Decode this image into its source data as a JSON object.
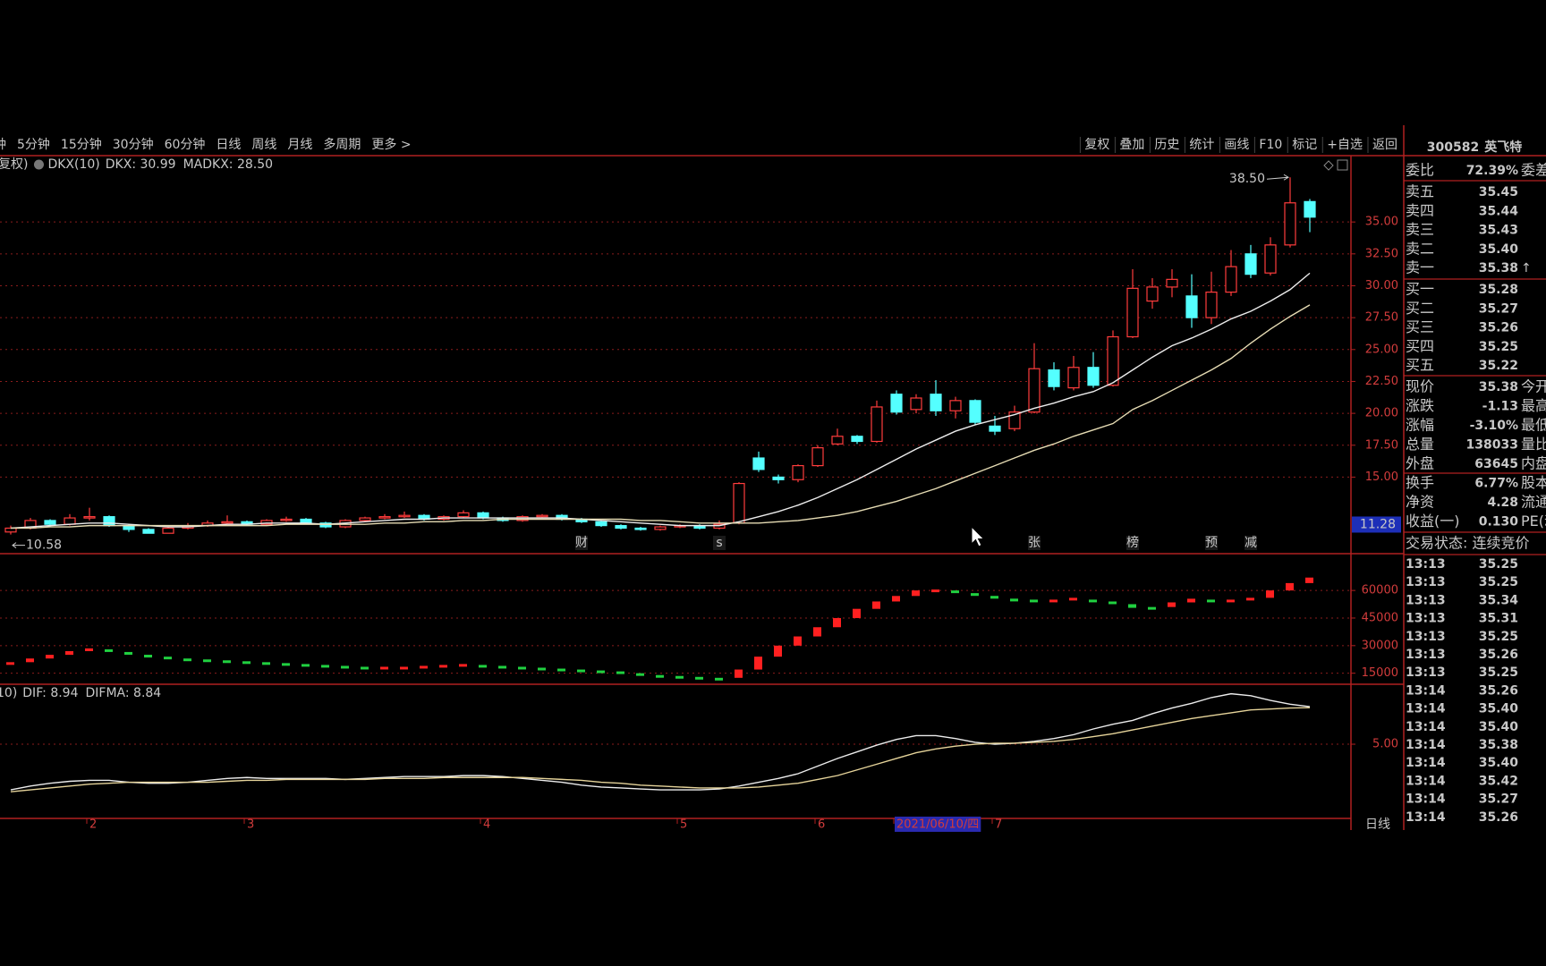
{
  "toolbar": {
    "periods": [
      "钟",
      "5分钟",
      "15分钟",
      "30分钟",
      "60分钟",
      "日线",
      "周线",
      "月线",
      "多周期",
      "更多 >"
    ],
    "active_period": 5,
    "tools": [
      "复权",
      "叠加",
      "历史",
      "统计",
      "画线",
      "F10",
      "标记",
      "+自选",
      "返回"
    ]
  },
  "chart_data": [
    {
      "type": "candlestick",
      "prefix": "复权)",
      "indicator": "DKX(10)",
      "categories": [
        null,
        null,
        null,
        null,
        "2",
        null,
        null,
        null,
        null,
        null,
        null,
        null,
        "3",
        null,
        null,
        null,
        null,
        null,
        null,
        null,
        null,
        null,
        null,
        null,
        "4",
        null,
        null,
        null,
        null,
        null,
        null,
        null,
        null,
        null,
        "5",
        null,
        null,
        null,
        null,
        null,
        null,
        "6",
        null,
        null,
        null,
        "2021/06/10/四",
        null,
        null,
        null,
        null,
        "7",
        null,
        null,
        null,
        null,
        null,
        null,
        null,
        null,
        null,
        null,
        null,
        null,
        null,
        null,
        null,
        null
      ],
      "open": [
        10.7,
        11.0,
        11.6,
        11.3,
        11.8,
        11.9,
        11.2,
        10.9,
        10.6,
        11.0,
        11.2,
        11.4,
        11.5,
        11.3,
        11.6,
        11.7,
        11.4,
        11.1,
        11.6,
        11.8,
        11.9,
        12.0,
        11.7,
        11.9,
        12.2,
        11.8,
        11.6,
        11.9,
        12.0,
        11.7,
        11.5,
        11.2,
        11.0,
        10.9,
        11.1,
        11.2,
        11.0,
        11.4,
        16.5,
        15.0,
        14.8,
        15.9,
        17.6,
        18.2,
        17.8,
        21.5,
        20.3,
        21.5,
        20.2,
        21.0,
        19.0,
        18.8,
        20.1,
        23.4,
        22.0,
        23.6,
        22.2,
        26.0,
        28.8,
        29.9,
        29.2,
        27.5,
        29.5,
        32.5,
        31.0,
        33.2,
        36.6
      ],
      "high": [
        11.2,
        11.8,
        11.7,
        12.1,
        12.6,
        12.0,
        11.3,
        11.0,
        11.1,
        11.4,
        11.6,
        12.0,
        11.6,
        11.7,
        11.9,
        11.8,
        11.5,
        11.7,
        11.9,
        12.1,
        12.3,
        12.1,
        12.0,
        12.4,
        12.3,
        11.9,
        12.0,
        12.1,
        12.1,
        11.8,
        11.6,
        11.3,
        11.1,
        11.2,
        11.3,
        11.3,
        11.6,
        14.6,
        17.0,
        15.2,
        16.0,
        17.5,
        18.8,
        18.3,
        21.0,
        21.8,
        21.5,
        22.6,
        21.3,
        21.1,
        19.8,
        20.6,
        25.5,
        24.0,
        24.5,
        24.8,
        26.5,
        31.3,
        30.6,
        31.3,
        30.9,
        31.1,
        32.8,
        33.2,
        33.8,
        38.5,
        36.8
      ],
      "low": [
        10.5,
        10.9,
        11.1,
        11.2,
        11.6,
        11.1,
        10.7,
        10.58,
        10.6,
        10.9,
        11.1,
        11.3,
        11.2,
        11.2,
        11.5,
        11.3,
        11.0,
        11.0,
        11.5,
        11.7,
        11.8,
        11.6,
        11.6,
        11.8,
        11.7,
        11.5,
        11.5,
        11.8,
        11.6,
        11.4,
        11.1,
        10.9,
        10.8,
        10.8,
        11.0,
        10.9,
        10.9,
        11.3,
        15.4,
        14.5,
        14.6,
        15.8,
        17.5,
        17.6,
        17.7,
        19.9,
        20.0,
        19.8,
        19.6,
        19.1,
        18.3,
        18.6,
        20.0,
        21.8,
        21.8,
        22.0,
        22.1,
        25.9,
        28.2,
        29.1,
        26.7,
        27.0,
        29.2,
        30.6,
        30.8,
        33.0,
        34.2
      ],
      "close": [
        11.0,
        11.6,
        11.3,
        11.8,
        11.9,
        11.2,
        10.9,
        10.6,
        11.0,
        11.2,
        11.4,
        11.5,
        11.3,
        11.6,
        11.7,
        11.4,
        11.1,
        11.6,
        11.8,
        11.9,
        12.0,
        11.7,
        11.9,
        12.2,
        11.8,
        11.6,
        11.9,
        12.0,
        11.7,
        11.5,
        11.2,
        11.0,
        10.9,
        11.1,
        11.2,
        11.0,
        11.3,
        14.5,
        15.6,
        14.8,
        15.9,
        17.3,
        18.2,
        17.8,
        20.5,
        20.1,
        21.2,
        20.2,
        21.0,
        19.3,
        18.6,
        20.1,
        23.5,
        22.1,
        23.6,
        22.2,
        26.0,
        29.8,
        29.9,
        30.5,
        27.5,
        29.5,
        31.5,
        30.9,
        33.2,
        36.5,
        35.38
      ],
      "up_color": "#ff3c3c",
      "down_color": "#54ffff",
      "series": [
        {
          "name": "DKX: 30.99",
          "color": "#ececec",
          "values": [
            11.0,
            11.1,
            11.2,
            11.3,
            11.4,
            11.4,
            11.3,
            11.2,
            11.1,
            11.1,
            11.2,
            11.3,
            11.3,
            11.4,
            11.4,
            11.4,
            11.3,
            11.4,
            11.5,
            11.6,
            11.7,
            11.7,
            11.8,
            11.8,
            11.8,
            11.8,
            11.8,
            11.8,
            11.8,
            11.7,
            11.6,
            11.5,
            11.4,
            11.3,
            11.2,
            11.2,
            11.2,
            11.5,
            11.9,
            12.3,
            12.8,
            13.4,
            14.1,
            14.8,
            15.6,
            16.4,
            17.2,
            17.9,
            18.6,
            19.1,
            19.5,
            19.9,
            20.4,
            20.8,
            21.3,
            21.7,
            22.4,
            23.4,
            24.4,
            25.3,
            25.9,
            26.6,
            27.4,
            28.0,
            28.8,
            29.7,
            30.99
          ]
        },
        {
          "name": "MADKX: 28.50",
          "color": "#e6dcb4",
          "values": [
            11.0,
            11.0,
            11.1,
            11.1,
            11.2,
            11.2,
            11.2,
            11.2,
            11.2,
            11.2,
            11.2,
            11.2,
            11.2,
            11.2,
            11.3,
            11.3,
            11.3,
            11.3,
            11.3,
            11.4,
            11.4,
            11.5,
            11.5,
            11.6,
            11.6,
            11.7,
            11.7,
            11.7,
            11.7,
            11.7,
            11.7,
            11.7,
            11.6,
            11.6,
            11.5,
            11.4,
            11.4,
            11.4,
            11.4,
            11.5,
            11.6,
            11.8,
            12.0,
            12.3,
            12.7,
            13.1,
            13.6,
            14.1,
            14.7,
            15.3,
            15.9,
            16.5,
            17.1,
            17.6,
            18.2,
            18.7,
            19.2,
            20.3,
            21.0,
            21.8,
            22.6,
            23.4,
            24.3,
            25.5,
            26.6,
            27.6,
            28.5
          ]
        }
      ],
      "events": [
        null,
        null,
        null,
        null,
        null,
        null,
        null,
        null,
        null,
        null,
        null,
        null,
        null,
        null,
        null,
        null,
        null,
        null,
        null,
        null,
        null,
        null,
        null,
        null,
        null,
        null,
        null,
        null,
        null,
        {
          "text": "财",
          "color": "#8090ff"
        },
        null,
        null,
        null,
        null,
        null,
        null,
        {
          "text": "s",
          "color": "#ff4040"
        },
        null,
        null,
        null,
        null,
        null,
        null,
        null,
        null,
        null,
        null,
        null,
        null,
        null,
        null,
        null,
        {
          "text": "张",
          "color": "#ff5050"
        },
        null,
        null,
        null,
        null,
        {
          "text": "榜",
          "color": "#ff7040"
        },
        null,
        null,
        null,
        {
          "text": "预",
          "color": "#ff8c30"
        },
        null,
        {
          "text": "减",
          "color": "#40e040"
        },
        null,
        null,
        null
      ],
      "max_label": "38.50",
      "min_label": "10.58",
      "cursor_price": {
        "value": 11.28,
        "label": "11.28"
      },
      "ylim": [
        9,
        40.2
      ],
      "yticks": [
        {
          "value": 15,
          "label": "15.00"
        },
        {
          "value": 17.5,
          "label": "17.50"
        },
        {
          "value": 20,
          "label": "20.00"
        },
        {
          "value": 22.5,
          "label": "22.50"
        },
        {
          "value": 25,
          "label": "25.00"
        },
        {
          "value": 27.5,
          "label": "27.50"
        },
        {
          "value": 30,
          "label": "30.00"
        },
        {
          "value": 32.5,
          "label": "32.50"
        },
        {
          "value": 35,
          "label": "35.00"
        }
      ],
      "grid": true,
      "period_label": "日线"
    },
    {
      "type": "segments",
      "values": [
        21000,
        23000,
        25000,
        27000,
        28500,
        28000,
        26500,
        25000,
        24000,
        23000,
        22500,
        22000,
        21500,
        21000,
        20500,
        20000,
        19500,
        19000,
        18500,
        18500,
        18500,
        19000,
        19500,
        20000,
        19500,
        19000,
        18500,
        18000,
        17500,
        17000,
        16500,
        16000,
        15000,
        14000,
        13500,
        13000,
        12500,
        17000,
        24000,
        30000,
        35000,
        40000,
        45000,
        50000,
        54000,
        57000,
        60000,
        60500,
        60000,
        58500,
        57000,
        55500,
        55000,
        55000,
        56000,
        55000,
        54000,
        52000,
        51000,
        53500,
        55500,
        55000,
        55000,
        56000,
        60000,
        64000,
        67000
      ],
      "up_color": "#ff2020",
      "down_color": "#20d040",
      "ylim": [
        9000,
        80000
      ],
      "yticks": [
        15000,
        30000,
        45000,
        60000
      ],
      "grid": true
    },
    {
      "type": "line",
      "prefix": "10)",
      "series": [
        {
          "name": "DIF: 8.94",
          "color": "#ececec",
          "values": [
            0.2,
            0.6,
            0.9,
            1.1,
            1.2,
            1.2,
            1.0,
            0.9,
            0.9,
            1.0,
            1.2,
            1.4,
            1.5,
            1.4,
            1.4,
            1.4,
            1.4,
            1.3,
            1.4,
            1.5,
            1.6,
            1.6,
            1.6,
            1.7,
            1.7,
            1.6,
            1.4,
            1.2,
            1.0,
            0.7,
            0.5,
            0.4,
            0.3,
            0.2,
            0.2,
            0.2,
            0.3,
            0.6,
            1.0,
            1.4,
            1.9,
            2.7,
            3.5,
            4.2,
            4.9,
            5.5,
            5.9,
            5.9,
            5.6,
            5.2,
            5.0,
            5.1,
            5.3,
            5.6,
            6.0,
            6.6,
            7.1,
            7.5,
            8.2,
            8.8,
            9.3,
            9.9,
            10.3,
            10.1,
            9.6,
            9.2,
            8.94
          ]
        },
        {
          "name": "DIFMA: 8.84",
          "color": "#e6d49a",
          "values": [
            0.0,
            0.2,
            0.4,
            0.6,
            0.8,
            0.9,
            1.0,
            1.0,
            1.0,
            1.0,
            1.0,
            1.1,
            1.2,
            1.2,
            1.3,
            1.3,
            1.3,
            1.3,
            1.3,
            1.4,
            1.4,
            1.4,
            1.5,
            1.5,
            1.5,
            1.5,
            1.5,
            1.4,
            1.3,
            1.2,
            1.0,
            0.9,
            0.7,
            0.6,
            0.5,
            0.4,
            0.4,
            0.4,
            0.5,
            0.7,
            0.9,
            1.3,
            1.7,
            2.3,
            2.9,
            3.5,
            4.1,
            4.5,
            4.8,
            5.0,
            5.1,
            5.1,
            5.2,
            5.3,
            5.5,
            5.8,
            6.1,
            6.5,
            6.9,
            7.3,
            7.7,
            8.0,
            8.3,
            8.6,
            8.7,
            8.8,
            8.84
          ]
        }
      ],
      "ylim": [
        -2.8,
        11.3
      ],
      "yticks": [
        {
          "value": 5,
          "label": "5.00"
        }
      ],
      "grid": true
    }
  ],
  "quote": {
    "code": "300582",
    "name": "英飞特",
    "ratio": {
      "label": "委比",
      "value": "72.39%",
      "extra": "委差"
    },
    "asks": [
      {
        "label": "卖五",
        "price": "35.45"
      },
      {
        "label": "卖四",
        "price": "35.44"
      },
      {
        "label": "卖三",
        "price": "35.43"
      },
      {
        "label": "卖二",
        "price": "35.40"
      },
      {
        "label": "卖一",
        "price": "35.38",
        "flag": "↑"
      }
    ],
    "bids": [
      {
        "label": "买一",
        "price": "35.28"
      },
      {
        "label": "买二",
        "price": "35.27"
      },
      {
        "label": "买三",
        "price": "35.26"
      },
      {
        "label": "买四",
        "price": "35.25"
      },
      {
        "label": "买五",
        "price": "35.22"
      }
    ],
    "stats": [
      {
        "label": "现价",
        "value": "35.38",
        "extra": "今开",
        "color": "#2ee62e"
      },
      {
        "label": "涨跌",
        "value": "-1.13",
        "extra": "最高",
        "color": "#2ee62e"
      },
      {
        "label": "涨幅",
        "value": "-3.10%",
        "extra": "最低",
        "color": "#2ee62e"
      },
      {
        "label": "总量",
        "value": "138033",
        "extra": "量比",
        "color": "#e8e6c0"
      },
      {
        "label": "外盘",
        "value": "63645",
        "extra": "内盘",
        "color": "#ff3c3c"
      },
      {
        "label": "换手",
        "value": "6.77%",
        "extra": "股本",
        "color": "#e8e8e8"
      },
      {
        "label": "净资",
        "value": "4.28",
        "extra": "流通",
        "color": "#e8e8e8"
      },
      {
        "label": "收益(一)",
        "value": "0.130",
        "extra": "PE(动)",
        "color": "#e8e8e8"
      }
    ],
    "status": "交易状态: 连续竞价",
    "trades": [
      {
        "time": "13:13",
        "price": "35.25"
      },
      {
        "time": "13:13",
        "price": "35.25"
      },
      {
        "time": "13:13",
        "price": "35.34"
      },
      {
        "time": "13:13",
        "price": "35.31"
      },
      {
        "time": "13:13",
        "price": "35.25"
      },
      {
        "time": "13:13",
        "price": "35.26"
      },
      {
        "time": "13:13",
        "price": "35.25"
      },
      {
        "time": "13:14",
        "price": "35.26"
      },
      {
        "time": "13:14",
        "price": "35.40"
      },
      {
        "time": "13:14",
        "price": "35.40"
      },
      {
        "time": "13:14",
        "price": "35.38"
      },
      {
        "time": "13:14",
        "price": "35.40"
      },
      {
        "time": "13:14",
        "price": "35.42"
      },
      {
        "time": "13:14",
        "price": "35.27"
      },
      {
        "time": "13:14",
        "price": "35.26"
      }
    ]
  }
}
